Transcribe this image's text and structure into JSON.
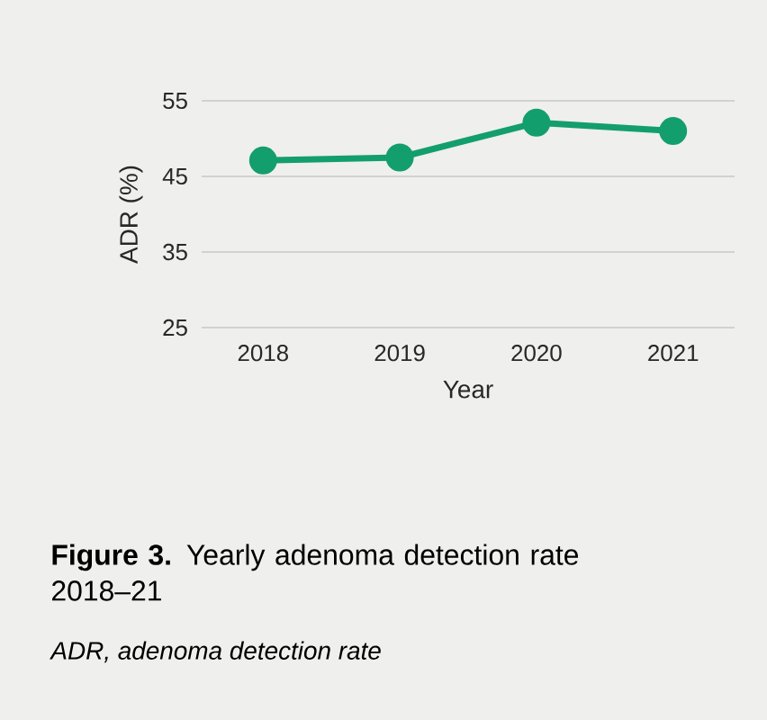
{
  "chart_data": {
    "type": "line",
    "title": "**Figure 3.** Yearly adenoma detection rate 2018–21",
    "annotations": [
      "ADR, adenoma detection rate"
    ],
    "xlabel": "Year",
    "ylabel": "ADR (%)",
    "categories": [
      "2018",
      "2019",
      "2020",
      "2021"
    ],
    "series": [
      {
        "color": "#139e6d",
        "values": [
          47.1,
          47.5,
          52.1,
          51.0
        ]
      }
    ],
    "ylim": [
      25,
      55
    ],
    "yticks": [
      25,
      35,
      45,
      55
    ],
    "grid": "y",
    "marker": "circle",
    "line_style": "solid"
  }
}
